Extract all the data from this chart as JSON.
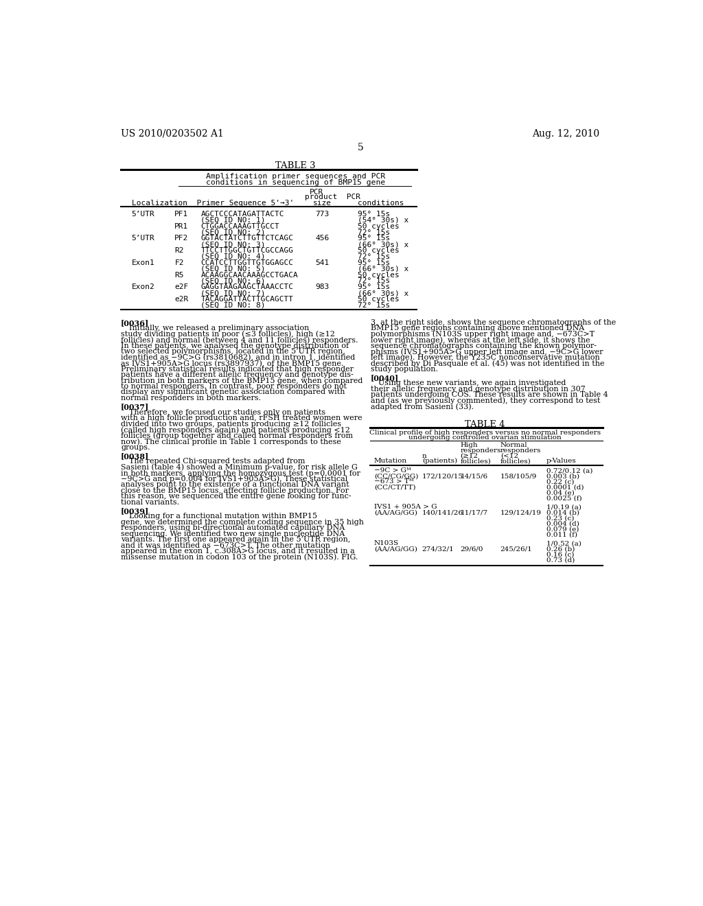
{
  "page_header_left": "US 2010/0203502 A1",
  "page_header_right": "Aug. 12, 2010",
  "page_number": "5",
  "background_color": "#ffffff",
  "table3_title": "TABLE 3",
  "table3_subtitle1": "Amplification primer sequences and PCR",
  "table3_subtitle2": "conditions in sequencing of BMP15 gene",
  "table4_title": "TABLE 4",
  "table4_subtitle1": "Clinical profile of high responders versus no normal responders",
  "table4_subtitle2": "undergoing controlled ovarian stimulation",
  "left_body": [
    {
      "label": "[0036]",
      "indent": true,
      "lines": [
        "Initially, we released a preliminary association",
        "study dividing patients in poor (≤3 follicles), high (≥12",
        "follicles) and normal (between 4 and 11 follicles) responders.",
        "In these patients, we analysed the genotype distribution of",
        "two selected polymorphisms, located in the 5’UTR region,",
        "identified as −9C>G (rs3810682), and in intron 1, identified",
        "as IVS1+905A>G locus (rs3897937), of the BMP15 gene.",
        "Preliminary statistical results indicated that high responder",
        "patients have a different allelic frequency and genotype dis-",
        "tribution in both markers of the BMP15 gene, when compared",
        "to normal responders. In contrast, poor responders do not",
        "display any significant genetic association compared with",
        "normal responders in both markers."
      ]
    },
    {
      "label": "[0037]",
      "indent": true,
      "lines": [
        "Therefore, we focused our studies only on patients",
        "with a high follicle production and, rFSH treated women were",
        "divided into two groups, patients producing ≥12 follicles",
        "(called high responders again) and patients producing <12",
        "follicles (group together and called normal responders from",
        "now). The clinical profile in Table 1 corresponds to these",
        "groups."
      ]
    },
    {
      "label": "[0038]",
      "indent": true,
      "lines": [
        "The repeated Chi-squared tests adapted from",
        "Sasieni (table 4) showed a Minimum p-value, for risk allele G",
        "in both markers, applying the homozygous test (p=0.0001 for",
        "−9C>G and p=0.004 for IVS1+905A>G). These statistical",
        "analyses point to the existence of a functional DNA variant",
        "close to the BMP15 locus, affecting follicle production. For",
        "this reason, we sequenced the entire gene looking for func-",
        "tional variants."
      ]
    },
    {
      "label": "[0039]",
      "indent": true,
      "lines": [
        "Looking for a functional mutation within BMP15",
        "gene, we determined the complete coding sequence in 35 high",
        "responders, using bi-directional automated capillary DNA",
        "sequencing. We identified two new single nucleotide DNA",
        "variants. The first one appeared again in the 5’UTR region,",
        "and it was identified as −673C>T. The other mutation",
        "appeared in the exon 1, c.308A>G locus, and it resulted in a",
        "missense mutation in codon 103 of the protein (N103S). FIG."
      ]
    }
  ],
  "right_body": [
    {
      "label": null,
      "lines": [
        "3, at the right side, shows the sequence chromatographs of the",
        "BMP15 gene regions containing above mentioned DNA",
        "polymorphisms (N103S upper right image and, −673C>T",
        "lower right image), whereas at the left side, it shows the",
        "sequence chromatographs containing the known polymor-",
        "phisms (IVS1+905A>G upper left image and, −9C>G lower",
        "left image). However, the Y235C nonconservative mutation",
        "described by Di Pasquale et al. (45) was not identified in the",
        "study population."
      ]
    },
    {
      "label": "[0040]",
      "indent": true,
      "lines": [
        "Using these new variants, we again investigated",
        "their allelic frequency and genotype distribution in 307",
        "patients undergoing COS. These results are shown in Table 4",
        "and (as we previously commented), they correspond to test",
        "adapted from Sasieni (33)."
      ]
    }
  ],
  "table3_rows": [
    [
      "5’UTR",
      "PF1",
      "AGCTCCCATAGATTACTC",
      "773",
      "95° 15s"
    ],
    [
      "",
      "",
      "(SEQ ID NO: 1)",
      "",
      "(54° 30s) x"
    ],
    [
      "",
      "PR1",
      "CTGGACCAAAGTTGCCT",
      "",
      "50 cycles"
    ],
    [
      "",
      "",
      "(SEQ ID NO: 2)",
      "",
      "72° 15s"
    ],
    [
      "5’UTR",
      "PF2",
      "GGTACTATCTTGTTCTCAGC",
      "456",
      "95° 15s"
    ],
    [
      "",
      "",
      "(SEQ ID NO: 3)",
      "",
      "(66° 30s) x"
    ],
    [
      "",
      "R2",
      "TTCCTTGGCTGTTCGCCAGG",
      "",
      "50 cycles"
    ],
    [
      "",
      "",
      "(SEQ ID NO: 4)",
      "",
      "72° 15s"
    ],
    [
      "Exon1",
      "F2",
      "CCATCCTTGGTTGTGGAGCC",
      "541",
      "95° 15s"
    ],
    [
      "",
      "",
      "(SEQ ID NO: 5)",
      "",
      "(66° 30s) x"
    ],
    [
      "",
      "R5",
      "ACAAGGCAACAAAGCCTGACA",
      "",
      "50 cycles"
    ],
    [
      "",
      "",
      "(SEQ ID NO: 6)",
      "",
      "72° 15s"
    ],
    [
      "Exon2",
      "e2F",
      "GAGGTAAGAAGCTAAACCTC",
      "983",
      "95° 15s"
    ],
    [
      "",
      "",
      "(SEQ ID NO: 7)",
      "",
      "(66° 30s) x"
    ],
    [
      "",
      "e2R",
      "TACAGGATTACTTGCAGCTT",
      "",
      "50 cycles"
    ],
    [
      "",
      "",
      "(SEQ ID NO: 8)",
      "",
      "72° 15s"
    ]
  ],
  "table4_rows": [
    {
      "mutation": [
        "−9C > Gᴹ",
        "(CC/CG/GG)",
        "−673 > Tᴹ",
        "(CC/CT/TT)"
      ],
      "n": "172/120/15",
      "high": "14/15/6",
      "normal": "158/105/9",
      "pvals": [
        "0.72/0.12 (a)",
        "0.003 (b)",
        "0.22 (c)",
        "0.0001 (d)",
        "0.04 (e)",
        "0.0025 (f)"
      ]
    },
    {
      "mutation": [
        "IVS1 + 905A > G",
        "(AA/AG/GG)"
      ],
      "n": "140/141/26",
      "high": "11/17/7",
      "normal": "129/124/19",
      "pvals": [
        "1/0.19 (a)",
        "0.014 (b)",
        "0.23 (c)",
        "0.004 (d)",
        "0.079 (e)",
        "0.011 (f)"
      ]
    },
    {
      "mutation": [
        "N103S",
        "(AA/AG/GG)"
      ],
      "n": "274/32/1",
      "high": "29/6/0",
      "normal": "245/26/1",
      "pvals": [
        "1/0.52 (a)",
        "0.26 (b)",
        "0.16 (c)",
        "0.73 (d)"
      ]
    }
  ]
}
